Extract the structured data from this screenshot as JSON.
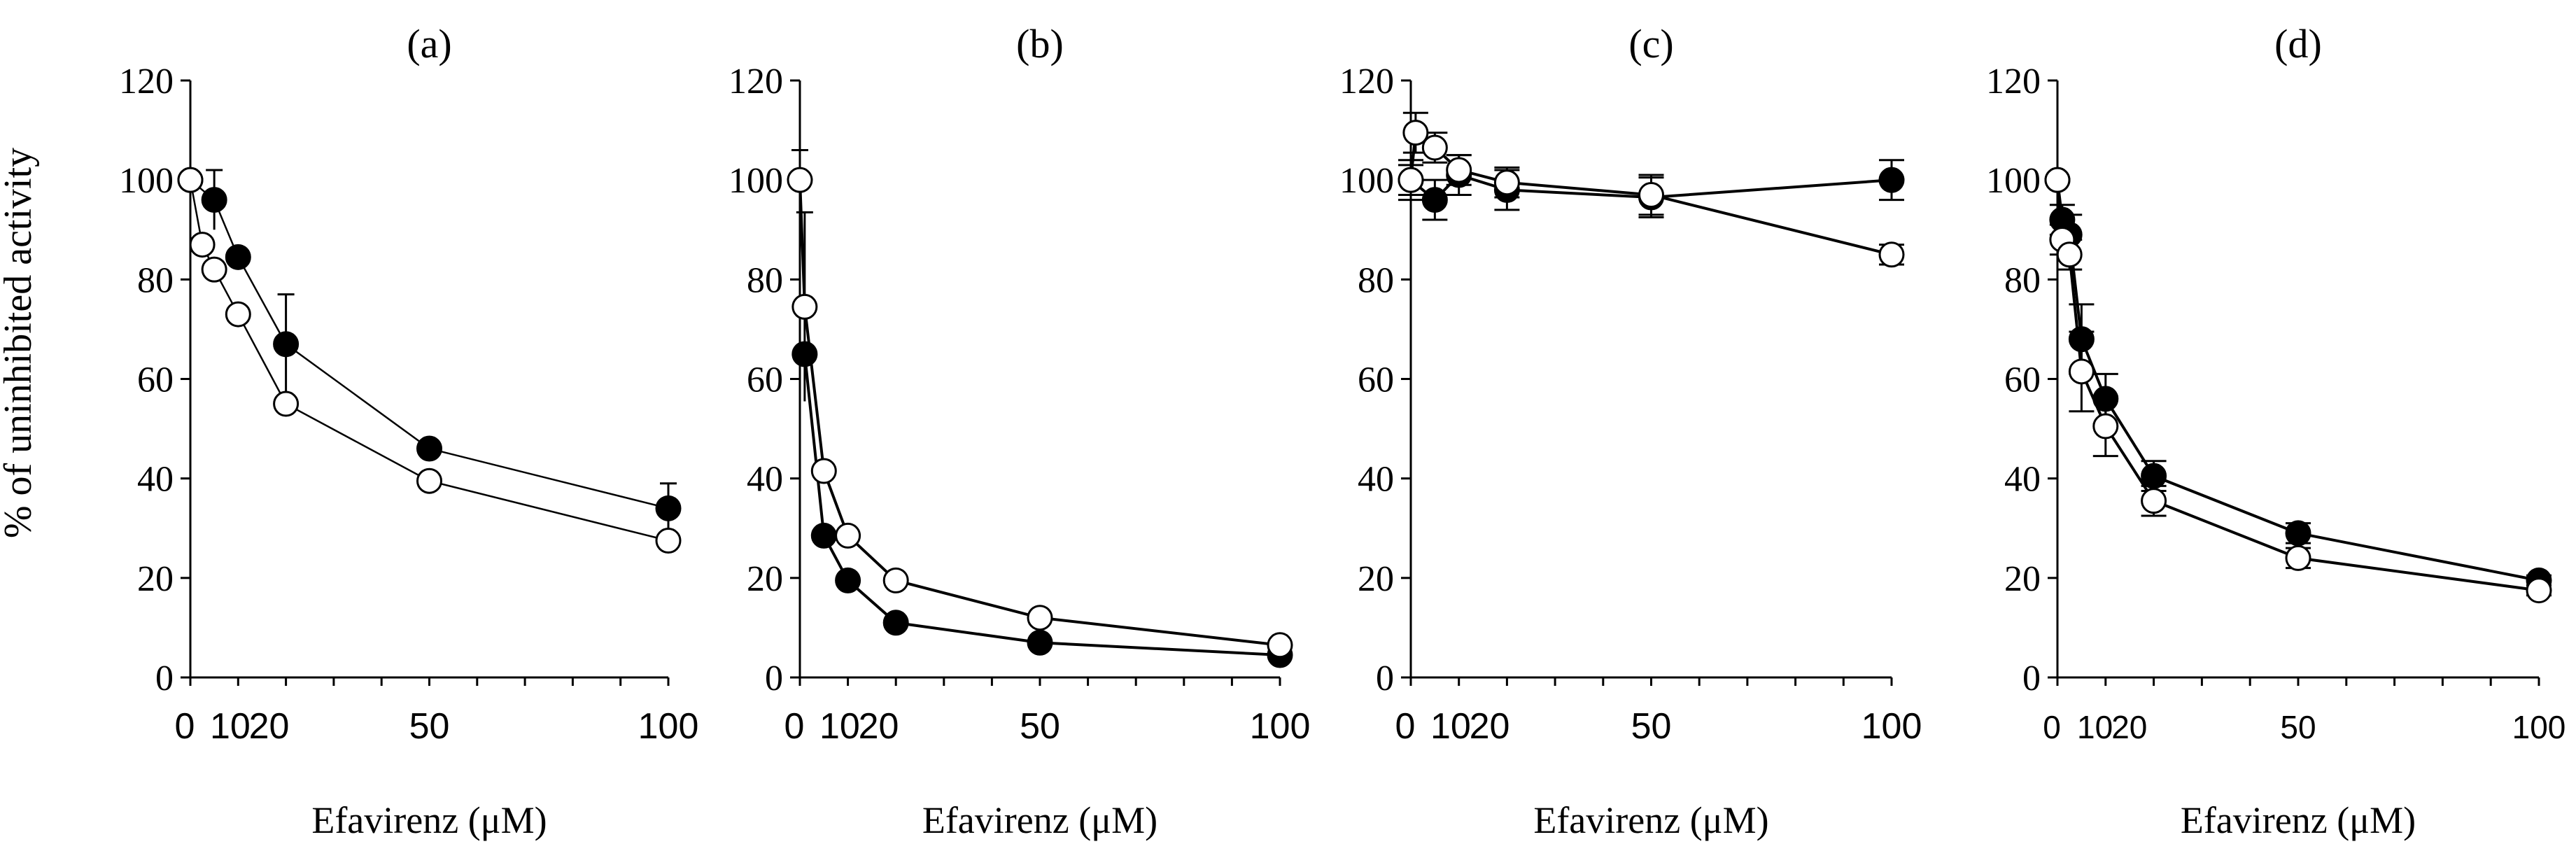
{
  "y_axis_label": "% of uninhibited activity",
  "chart_data": [
    {
      "type": "scatter",
      "title": "(a)",
      "xlabel": "Efavirenz (μM)",
      "ylabel": "% of uninhibited activity",
      "xlim": [
        0,
        100
      ],
      "ylim": [
        0,
        120
      ],
      "x_tick_labels": [
        "0",
        "10",
        "20",
        "50",
        "100"
      ],
      "y_tick_labels": [
        "0",
        "20",
        "40",
        "60",
        "80",
        "100",
        "120"
      ],
      "error_caps": false,
      "series": [
        {
          "name": "filled",
          "style": "filled",
          "x": [
            0,
            5,
            10,
            20,
            50,
            100
          ],
          "y": [
            100,
            96,
            84.5,
            67,
            46,
            34
          ],
          "err": [
            0,
            6,
            0,
            10,
            0,
            5
          ]
        },
        {
          "name": "open",
          "style": "open",
          "x": [
            0,
            2.5,
            5,
            10,
            20,
            50,
            100
          ],
          "y": [
            100,
            87,
            82,
            73,
            55,
            39.5,
            27.5
          ],
          "err": [
            0,
            0,
            0,
            0,
            0,
            0,
            0
          ]
        }
      ]
    },
    {
      "type": "scatter",
      "title": "(b)",
      "xlabel": "Efavirenz (μM)",
      "ylabel": "",
      "xlim": [
        0,
        100
      ],
      "ylim": [
        0,
        120
      ],
      "x_tick_labels": [
        "0",
        "10",
        "20",
        "50",
        "100"
      ],
      "y_tick_labels": [
        "0",
        "20",
        "40",
        "60",
        "80",
        "100",
        "120"
      ],
      "error_caps": false,
      "series": [
        {
          "name": "filled",
          "style": "filled",
          "x": [
            1,
            5,
            10,
            20,
            50,
            100
          ],
          "y": [
            65,
            28.5,
            19.5,
            11,
            7,
            4.5
          ],
          "err": [
            0,
            0,
            0,
            0,
            0,
            0
          ]
        },
        {
          "name": "open",
          "style": "open",
          "x": [
            0,
            1,
            5,
            10,
            20,
            50,
            100
          ],
          "y": [
            100,
            74.5,
            41.5,
            28.5,
            19.5,
            12,
            6.5
          ],
          "err": [
            6,
            19,
            0,
            0,
            0,
            0,
            0
          ]
        }
      ]
    },
    {
      "type": "scatter",
      "title": "(c)",
      "xlabel": "Efavirenz (μM)",
      "ylabel": "",
      "xlim": [
        0,
        100
      ],
      "ylim": [
        0,
        120
      ],
      "x_tick_labels": [
        "0",
        "10",
        "20",
        "50",
        "100"
      ],
      "y_tick_labels": [
        "0",
        "20",
        "40",
        "60",
        "80",
        "100",
        "120"
      ],
      "error_caps": true,
      "series": [
        {
          "name": "filled",
          "style": "filled",
          "x": [
            0,
            5,
            10,
            20,
            50,
            100
          ],
          "y": [
            100,
            96,
            101,
            98,
            96.5,
            100
          ],
          "err": [
            4,
            4,
            4,
            4,
            4,
            4
          ]
        },
        {
          "name": "open",
          "style": "open",
          "x": [
            0,
            1,
            5,
            10,
            20,
            50,
            100
          ],
          "y": [
            100,
            109.5,
            106.5,
            102,
            99.5,
            97,
            85
          ],
          "err": [
            3,
            4,
            3,
            3,
            3,
            4,
            2
          ]
        }
      ]
    },
    {
      "type": "scatter",
      "title": "(d)",
      "xlabel": "Efavirenz (μM)",
      "ylabel": "",
      "xlim": [
        0,
        100
      ],
      "ylim": [
        0,
        120
      ],
      "x_tick_labels": [
        "0",
        "10",
        "20",
        "50",
        "100"
      ],
      "y_tick_labels": [
        "0",
        "20",
        "40",
        "60",
        "80",
        "100",
        "120"
      ],
      "error_caps": true,
      "series": [
        {
          "name": "filled",
          "style": "filled",
          "x": [
            0,
            1,
            2.5,
            5,
            10,
            20,
            50,
            100
          ],
          "y": [
            100,
            92,
            89,
            68,
            56,
            40.5,
            29,
            19.5
          ],
          "err": [
            0,
            3,
            4,
            7,
            5,
            3,
            2,
            1
          ]
        },
        {
          "name": "open",
          "style": "open",
          "x": [
            0,
            1,
            2.5,
            5,
            10,
            20,
            50,
            100
          ],
          "y": [
            100,
            88,
            85,
            61.5,
            50.5,
            35.5,
            24,
            17.5
          ],
          "err": [
            0,
            3,
            3,
            8,
            6,
            3,
            2,
            1
          ]
        }
      ]
    }
  ]
}
